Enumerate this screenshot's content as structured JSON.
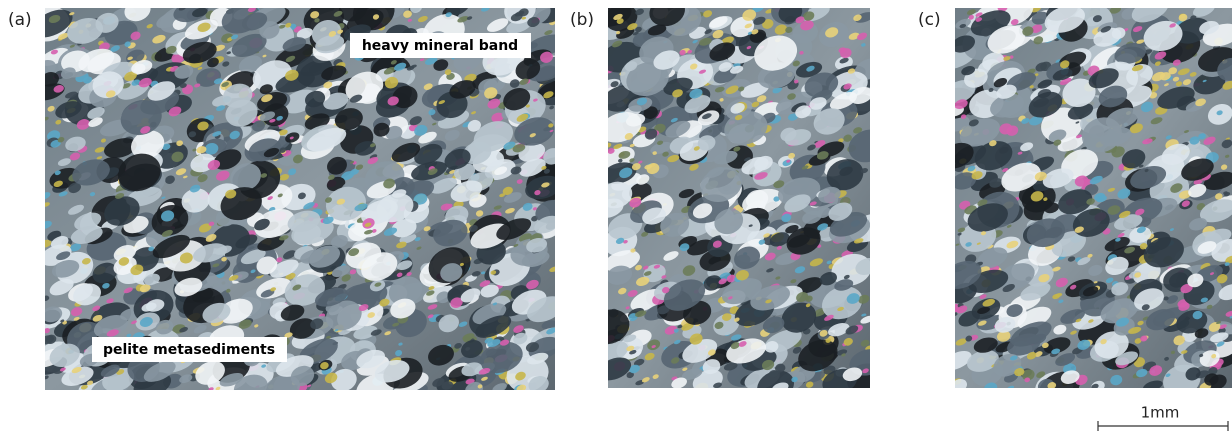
{
  "panels": [
    {
      "label": "(a)",
      "annotations": [
        "heavy mineral band",
        "pelite metasediments"
      ]
    },
    {
      "label": "(b)"
    },
    {
      "label": "(c)"
    }
  ],
  "scale_bar": {
    "label": "1mm"
  }
}
